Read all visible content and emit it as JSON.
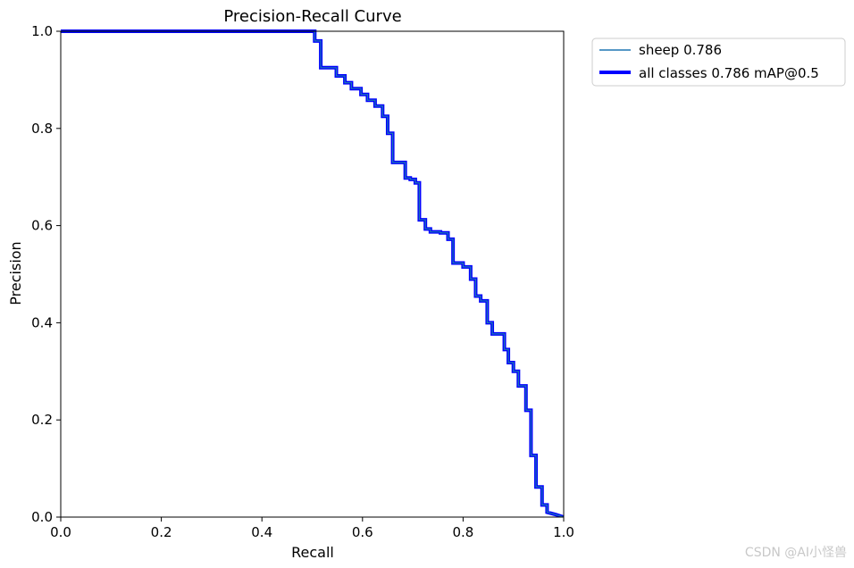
{
  "chart_data": {
    "type": "line",
    "title": "Precision-Recall Curve",
    "xlabel": "Recall",
    "ylabel": "Precision",
    "xlim": [
      0,
      1
    ],
    "ylim": [
      0,
      1
    ],
    "xticks": [
      "0.0",
      "0.2",
      "0.4",
      "0.6",
      "0.8",
      "1.0"
    ],
    "yticks": [
      "0.0",
      "0.2",
      "0.4",
      "0.6",
      "0.8",
      "1.0"
    ],
    "grid": false,
    "legend_position": "outside-top-right",
    "series": [
      {
        "name": "sheep 0.786",
        "color": "#1f77b4",
        "style": "thin",
        "points": [
          [
            0.0,
            1.0
          ],
          [
            0.505,
            1.0
          ],
          [
            0.505,
            0.98
          ],
          [
            0.517,
            0.98
          ],
          [
            0.517,
            0.925
          ],
          [
            0.548,
            0.925
          ],
          [
            0.548,
            0.908
          ],
          [
            0.565,
            0.908
          ],
          [
            0.565,
            0.894
          ],
          [
            0.578,
            0.894
          ],
          [
            0.578,
            0.882
          ],
          [
            0.597,
            0.882
          ],
          [
            0.597,
            0.87
          ],
          [
            0.61,
            0.87
          ],
          [
            0.61,
            0.858
          ],
          [
            0.625,
            0.858
          ],
          [
            0.625,
            0.846
          ],
          [
            0.64,
            0.846
          ],
          [
            0.64,
            0.825
          ],
          [
            0.65,
            0.825
          ],
          [
            0.65,
            0.79
          ],
          [
            0.66,
            0.79
          ],
          [
            0.66,
            0.73
          ],
          [
            0.685,
            0.73
          ],
          [
            0.685,
            0.698
          ],
          [
            0.695,
            0.698
          ],
          [
            0.695,
            0.695
          ],
          [
            0.705,
            0.695
          ],
          [
            0.705,
            0.688
          ],
          [
            0.713,
            0.688
          ],
          [
            0.713,
            0.612
          ],
          [
            0.725,
            0.612
          ],
          [
            0.725,
            0.593
          ],
          [
            0.735,
            0.593
          ],
          [
            0.735,
            0.587
          ],
          [
            0.755,
            0.587
          ],
          [
            0.755,
            0.585
          ],
          [
            0.77,
            0.585
          ],
          [
            0.77,
            0.572
          ],
          [
            0.78,
            0.572
          ],
          [
            0.78,
            0.523
          ],
          [
            0.8,
            0.523
          ],
          [
            0.8,
            0.515
          ],
          [
            0.815,
            0.515
          ],
          [
            0.815,
            0.49
          ],
          [
            0.825,
            0.49
          ],
          [
            0.825,
            0.455
          ],
          [
            0.835,
            0.455
          ],
          [
            0.835,
            0.445
          ],
          [
            0.848,
            0.445
          ],
          [
            0.848,
            0.4
          ],
          [
            0.858,
            0.4
          ],
          [
            0.858,
            0.377
          ],
          [
            0.882,
            0.377
          ],
          [
            0.882,
            0.345
          ],
          [
            0.89,
            0.345
          ],
          [
            0.89,
            0.318
          ],
          [
            0.9,
            0.318
          ],
          [
            0.9,
            0.3
          ],
          [
            0.91,
            0.3
          ],
          [
            0.91,
            0.27
          ],
          [
            0.925,
            0.27
          ],
          [
            0.925,
            0.22
          ],
          [
            0.935,
            0.22
          ],
          [
            0.935,
            0.127
          ],
          [
            0.945,
            0.127
          ],
          [
            0.945,
            0.062
          ],
          [
            0.957,
            0.062
          ],
          [
            0.957,
            0.025
          ],
          [
            0.967,
            0.025
          ],
          [
            0.967,
            0.01
          ],
          [
            0.985,
            0.005
          ],
          [
            1.0,
            0.0
          ]
        ]
      },
      {
        "name": "all classes 0.786 mAP@0.5",
        "color": "#0000ff",
        "style": "thick",
        "same_as_series": 0
      }
    ]
  },
  "watermark": "CSDN @AI小怪兽"
}
